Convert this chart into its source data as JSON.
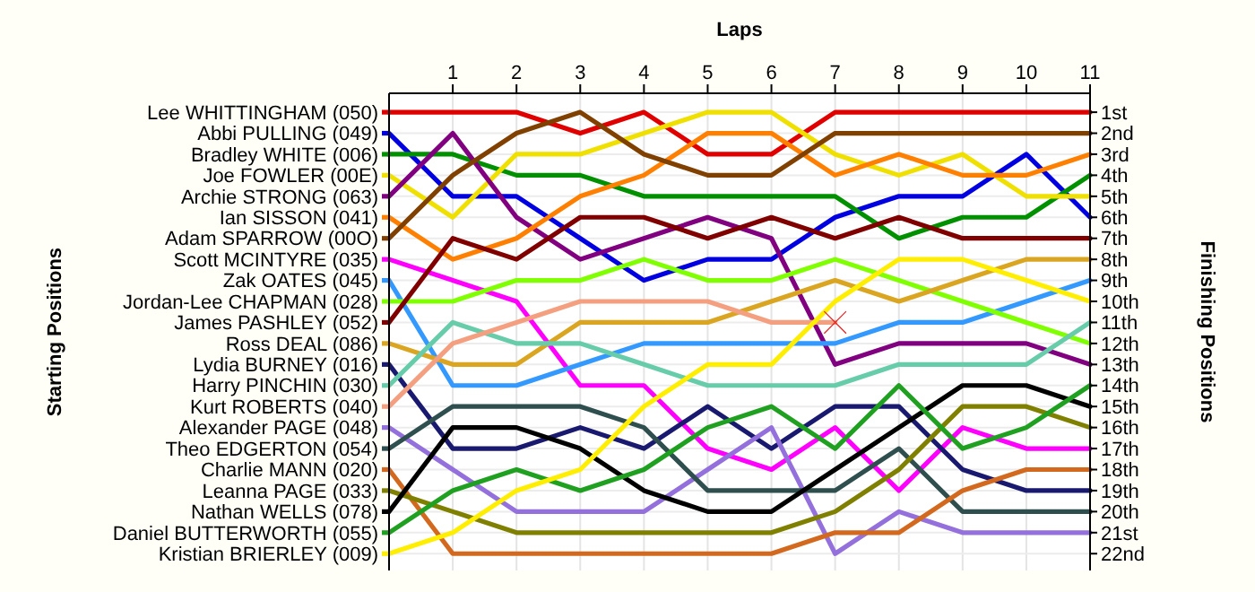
{
  "chart_data": {
    "type": "line",
    "xlabel": "Laps",
    "ylabel": "Finishing Positions",
    "x": [
      0,
      1,
      2,
      3,
      4,
      5,
      6,
      7,
      8,
      9,
      10,
      11
    ],
    "xlim": [
      0,
      11
    ],
    "xticks": [
      1,
      2,
      3,
      4,
      5,
      6,
      7,
      8,
      9,
      10,
      11
    ],
    "ylim": [
      22.8,
      0.1
    ],
    "yticks": [
      {
        "value": 1,
        "label": "1st"
      },
      {
        "value": 2,
        "label": "2nd"
      },
      {
        "value": 3,
        "label": "3rd"
      },
      {
        "value": 4,
        "label": "4th"
      },
      {
        "value": 5,
        "label": "5th"
      },
      {
        "value": 6,
        "label": "6th"
      },
      {
        "value": 7,
        "label": "7th"
      },
      {
        "value": 8,
        "label": "8th"
      },
      {
        "value": 9,
        "label": "9th"
      },
      {
        "value": 10,
        "label": "10th"
      },
      {
        "value": 11,
        "label": "11th"
      },
      {
        "value": 12,
        "label": "12th"
      },
      {
        "value": 13,
        "label": "13th"
      },
      {
        "value": 14,
        "label": "14th"
      },
      {
        "value": 15,
        "label": "15th"
      },
      {
        "value": 16,
        "label": "16th"
      },
      {
        "value": 17,
        "label": "17th"
      },
      {
        "value": 18,
        "label": "18th"
      },
      {
        "value": 19,
        "label": "19th"
      },
      {
        "value": 20,
        "label": "20th"
      },
      {
        "value": 21,
        "label": "21st"
      },
      {
        "value": 22,
        "label": "22nd"
      }
    ],
    "annotations": [
      "Starting Positions"
    ],
    "grid": true,
    "legend": "left",
    "marker": "none",
    "line_style": "solid",
    "series": [
      {
        "name": "Lee WHITTINGHAM (050)",
        "color": "#e00000",
        "values": [
          1,
          1,
          1,
          2,
          1,
          3,
          3,
          1,
          1,
          1,
          1,
          1
        ]
      },
      {
        "name": "Abbi PULLING (049)",
        "color": "#0000e0",
        "values": [
          2,
          5,
          5,
          7,
          9,
          8,
          8,
          6,
          5,
          5,
          3,
          6
        ]
      },
      {
        "name": "Bradley WHITE (006)",
        "color": "#009000",
        "values": [
          3,
          3,
          4,
          4,
          5,
          5,
          5,
          5,
          7,
          6,
          6,
          4
        ]
      },
      {
        "name": "Joe FOWLER (00E)",
        "color": "#f0e000",
        "values": [
          4,
          6,
          3,
          3,
          2,
          1,
          1,
          3,
          4,
          3,
          5,
          5
        ]
      },
      {
        "name": "Archie STRONG (063)",
        "color": "#800080",
        "values": [
          5,
          2,
          6,
          8,
          7,
          6,
          7,
          13,
          12,
          12,
          12,
          13
        ]
      },
      {
        "name": "Ian SISSON (041)",
        "color": "#ff8000",
        "values": [
          6,
          8,
          7,
          5,
          4,
          2,
          2,
          4,
          3,
          4,
          4,
          3
        ]
      },
      {
        "name": "Adam SPARROW (00O)",
        "color": "#804000",
        "values": [
          7,
          4,
          2,
          1,
          3,
          4,
          4,
          2,
          2,
          2,
          2,
          2
        ]
      },
      {
        "name": "Scott MCINTYRE (035)",
        "color": "#ff00ff",
        "values": [
          8,
          9,
          10,
          14,
          14,
          17,
          18,
          16,
          19,
          16,
          17,
          17
        ]
      },
      {
        "name": "Zak OATES (045)",
        "color": "#3399ff",
        "values": [
          9,
          14,
          14,
          13,
          12,
          12,
          12,
          12,
          11,
          11,
          10,
          9
        ]
      },
      {
        "name": "Jordan-Lee CHAPMAN (028)",
        "color": "#80ff00",
        "values": [
          10,
          10,
          9,
          9,
          8,
          9,
          9,
          8,
          9,
          10,
          11,
          12
        ]
      },
      {
        "name": "James PASHLEY (052)",
        "color": "#800000",
        "values": [
          11,
          7,
          8,
          6,
          6,
          7,
          6,
          7,
          6,
          7,
          7,
          7
        ]
      },
      {
        "name": "Ross DEAL (086)",
        "color": "#daa520",
        "values": [
          12,
          13,
          13,
          11,
          11,
          11,
          10,
          9,
          10,
          9,
          8,
          8
        ]
      },
      {
        "name": "Lydia BURNEY (016)",
        "color": "#191970",
        "values": [
          13,
          17,
          17,
          16,
          17,
          15,
          17,
          15,
          15,
          18,
          19,
          19
        ]
      },
      {
        "name": "Harry PINCHIN (030)",
        "color": "#66ccaa",
        "values": [
          14,
          11,
          12,
          12,
          13,
          14,
          14,
          14,
          13,
          13,
          13,
          11
        ]
      },
      {
        "name": "Kurt ROBERTS (040)",
        "color": "#f4a080",
        "values": [
          15,
          12,
          11,
          10,
          10,
          10,
          11,
          11,
          null,
          null,
          null,
          null
        ]
      },
      {
        "name": "Alexander PAGE (048)",
        "color": "#9370db",
        "values": [
          16,
          18,
          20,
          20,
          20,
          18,
          16,
          22,
          20,
          21,
          21,
          21
        ]
      },
      {
        "name": "Theo EDGERTON (054)",
        "color": "#2f4f4f",
        "values": [
          17,
          15,
          15,
          15,
          16,
          19,
          19,
          19,
          17,
          20,
          20,
          20
        ]
      },
      {
        "name": "Charlie MANN (020)",
        "color": "#d2691e",
        "values": [
          18,
          22,
          22,
          22,
          22,
          22,
          22,
          21,
          21,
          19,
          18,
          18
        ]
      },
      {
        "name": "Leanna PAGE (033)",
        "color": "#808000",
        "values": [
          19,
          20,
          21,
          21,
          21,
          21,
          21,
          20,
          18,
          15,
          15,
          16
        ]
      },
      {
        "name": "Nathan WELLS (078)",
        "color": "#000000",
        "values": [
          20,
          16,
          16,
          17,
          19,
          20,
          20,
          18,
          16,
          14,
          14,
          15
        ]
      },
      {
        "name": "Daniel BUTTERWORTH (055)",
        "color": "#20a020",
        "values": [
          21,
          19,
          18,
          19,
          18,
          16,
          15,
          17,
          14,
          17,
          16,
          14
        ]
      },
      {
        "name": "Kristian BRIERLEY (009)",
        "color": "#ffee00",
        "values": [
          22,
          21,
          19,
          18,
          15,
          13,
          13,
          10,
          8,
          8,
          9,
          10
        ]
      },
      {
        "type": "scatter",
        "marker": "cross",
        "color": "#e02020",
        "x": [
          7
        ],
        "values": [
          11
        ]
      }
    ]
  }
}
